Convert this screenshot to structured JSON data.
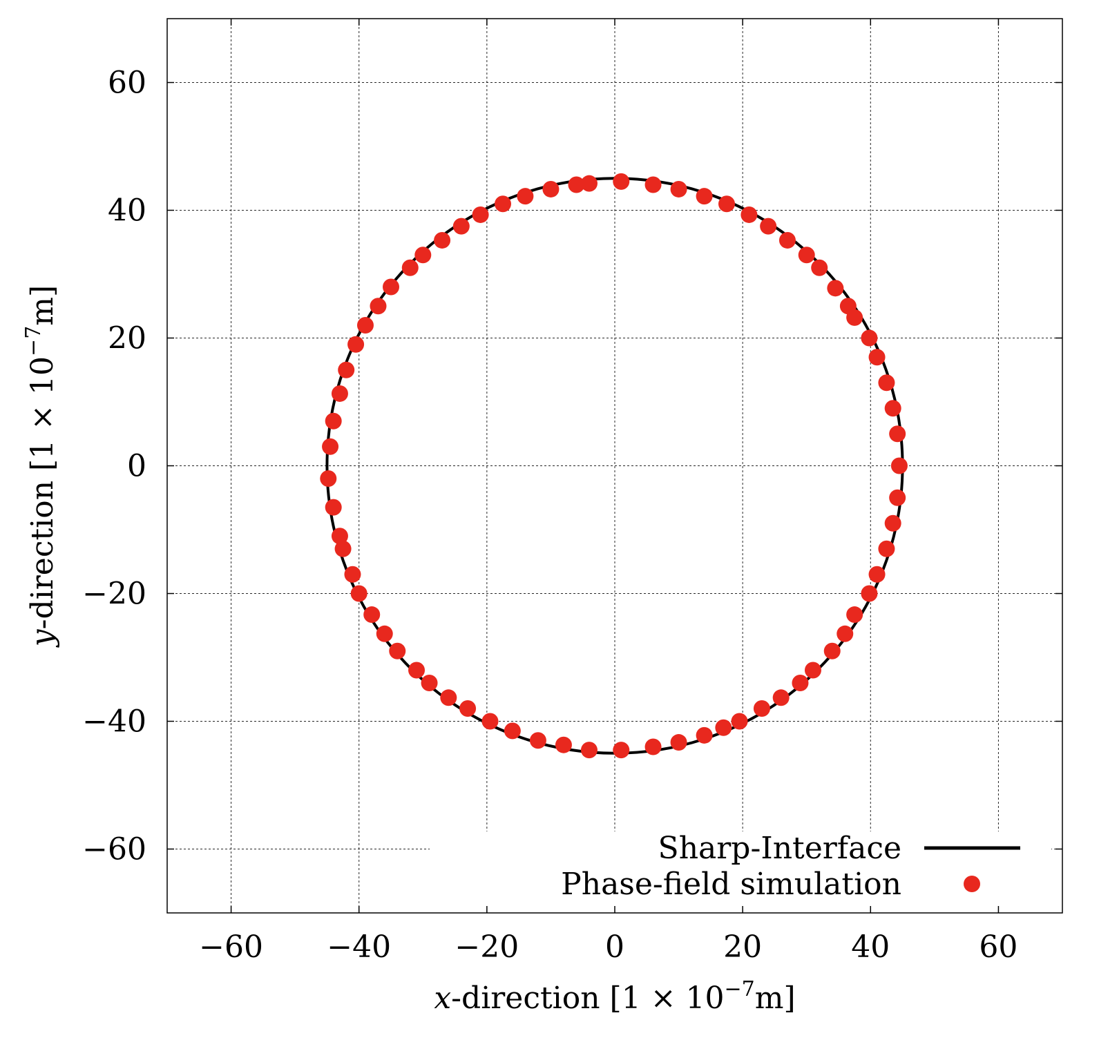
{
  "chart_data": {
    "type": "scatter",
    "xlabel": {
      "var": "x",
      "rest": "-direction [1 × 10",
      "exp": "−7",
      "unit": "m]"
    },
    "ylabel": {
      "var": "y",
      "rest": "-direction [1 × 10",
      "exp": "−7",
      "unit": "m]"
    },
    "xlim": [
      -70,
      70
    ],
    "ylim": [
      -70,
      70
    ],
    "x_ticks": [
      -60,
      -40,
      -20,
      0,
      20,
      40,
      60
    ],
    "y_ticks": [
      -60,
      -40,
      -20,
      0,
      20,
      40,
      60
    ],
    "x_tick_labels": [
      "−60",
      "−40",
      "−20",
      "0",
      "20",
      "40",
      "60"
    ],
    "y_tick_labels": [
      "−60",
      "−40",
      "−20",
      "0",
      "20",
      "40",
      "60"
    ],
    "grid": true,
    "legend_position": "bottom-right",
    "series": [
      {
        "name": "Sharp-Interface",
        "kind": "line",
        "color": "#000000",
        "shape": "circle",
        "center": [
          0,
          0
        ],
        "radius": 45
      },
      {
        "name": "Phase-field simulation",
        "kind": "scatter",
        "color": "#e8281e",
        "points": [
          [
            1.0,
            44.5
          ],
          [
            6.0,
            44.0
          ],
          [
            10.0,
            43.3
          ],
          [
            14.0,
            42.2
          ],
          [
            17.5,
            41.0
          ],
          [
            21.0,
            39.3
          ],
          [
            24.0,
            37.5
          ],
          [
            27.0,
            35.3
          ],
          [
            30.0,
            33.0
          ],
          [
            32.0,
            31.0
          ],
          [
            34.5,
            27.8
          ],
          [
            36.5,
            25.0
          ],
          [
            37.5,
            23.2
          ],
          [
            39.8,
            20.0
          ],
          [
            41.0,
            17.0
          ],
          [
            42.5,
            13.0
          ],
          [
            43.5,
            9.0
          ],
          [
            44.2,
            5.0
          ],
          [
            44.5,
            0.0
          ],
          [
            44.2,
            -5.0
          ],
          [
            43.5,
            -9.0
          ],
          [
            42.5,
            -13.0
          ],
          [
            41.0,
            -17.0
          ],
          [
            39.8,
            -20.0
          ],
          [
            37.5,
            -23.3
          ],
          [
            36.0,
            -26.3
          ],
          [
            34.0,
            -29.0
          ],
          [
            31.0,
            -32.0
          ],
          [
            29.0,
            -34.0
          ],
          [
            26.0,
            -36.3
          ],
          [
            23.0,
            -38.0
          ],
          [
            19.5,
            -40.0
          ],
          [
            17.0,
            -41.0
          ],
          [
            14.0,
            -42.2
          ],
          [
            10.0,
            -43.3
          ],
          [
            6.0,
            -44.0
          ],
          [
            1.0,
            -44.5
          ],
          [
            -4.0,
            -44.5
          ],
          [
            -8.0,
            -43.7
          ],
          [
            -12.0,
            -43.0
          ],
          [
            -16.0,
            -41.5
          ],
          [
            -19.5,
            -40.0
          ],
          [
            -23.0,
            -38.0
          ],
          [
            -26.0,
            -36.3
          ],
          [
            -29.0,
            -34.0
          ],
          [
            -31.0,
            -32.0
          ],
          [
            -34.0,
            -29.0
          ],
          [
            -36.0,
            -26.3
          ],
          [
            -38.0,
            -23.3
          ],
          [
            -40.0,
            -20.0
          ],
          [
            -41.0,
            -17.0
          ],
          [
            -42.5,
            -13.0
          ],
          [
            -43.0,
            -11.0
          ],
          [
            -44.0,
            -6.5
          ],
          [
            -44.8,
            -2.0
          ],
          [
            -44.5,
            3.0
          ],
          [
            -44.0,
            7.0
          ],
          [
            -43.0,
            11.3
          ],
          [
            -42.0,
            15.0
          ],
          [
            -40.5,
            19.0
          ],
          [
            -39.0,
            22.0
          ],
          [
            -37.0,
            25.0
          ],
          [
            -35.0,
            28.0
          ],
          [
            -32.0,
            31.0
          ],
          [
            -30.0,
            33.0
          ],
          [
            -27.0,
            35.3
          ],
          [
            -24.0,
            37.5
          ],
          [
            -21.0,
            39.3
          ],
          [
            -17.5,
            41.0
          ],
          [
            -14.0,
            42.2
          ],
          [
            -10.0,
            43.3
          ],
          [
            -6.0,
            44.0
          ],
          [
            -4.0,
            44.2
          ]
        ]
      }
    ]
  }
}
